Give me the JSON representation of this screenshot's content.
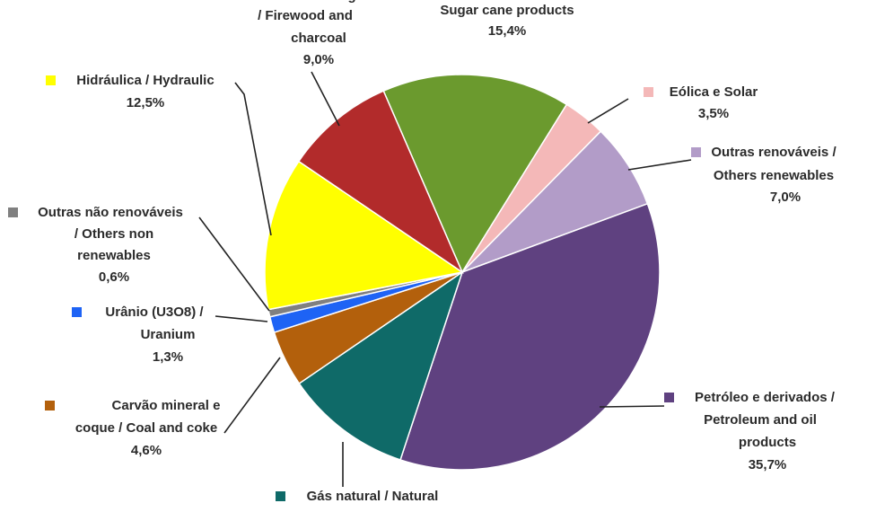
{
  "chart_data": {
    "type": "pie",
    "categories": [
      [
        "Sugar cane products"
      ],
      [
        "Eólica e Solar"
      ],
      [
        "Outras renováveis /",
        "Others renewables"
      ],
      [
        "Petróleo e derivados /",
        "Petroleum and oil",
        "products"
      ],
      [
        "Gás natural / Natural"
      ],
      [
        "Carvão mineral e",
        "coque / Coal and coke"
      ],
      [
        "Urânio (U3O8) /",
        "Uranium"
      ],
      [
        "Outras não renováveis",
        "/ Others non",
        "renewables"
      ],
      [
        "Hidráulica  / Hydraulic"
      ],
      [
        "Lenha e carvão vegetal",
        "/ Firewood and",
        "charcoal"
      ]
    ],
    "values": [
      15.4,
      3.5,
      7.0,
      35.7,
      10.4,
      4.6,
      1.3,
      0.6,
      12.5,
      9.0
    ],
    "value_labels": [
      "15,4%",
      "3,5%",
      "7,0%",
      "35,7%",
      null,
      "4,6%",
      "1,3%",
      "0,6%",
      "12,5%",
      "9,0%"
    ],
    "colors": [
      "#6b9a2e",
      "#f4b8b8",
      "#b29cc8",
      "#5f4180",
      "#0f6a68",
      "#b3600c",
      "#1e63f5",
      "#808080",
      "#ffff00",
      "#b22b2b"
    ]
  }
}
